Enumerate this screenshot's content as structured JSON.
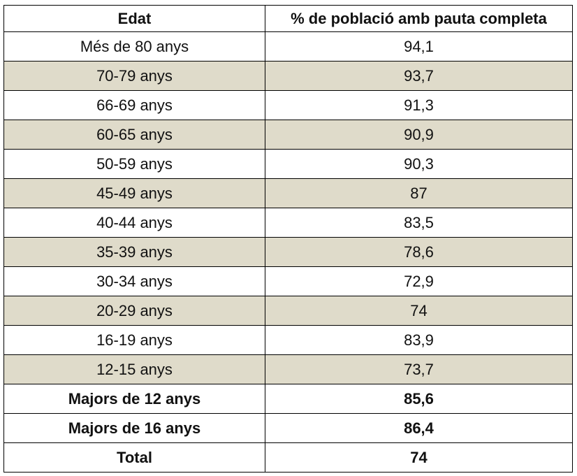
{
  "table": {
    "header": [
      "Edat",
      "% de població amb pauta completa"
    ],
    "rows": [
      [
        "Més de 80 anys",
        "94,1"
      ],
      [
        "70-79 anys",
        "93,7"
      ],
      [
        "66-69 anys",
        "91,3"
      ],
      [
        "60-65 anys",
        "90,9"
      ],
      [
        "50-59 anys",
        "90,3"
      ],
      [
        "45-49 anys",
        "87"
      ],
      [
        "40-44 anys",
        "83,5"
      ],
      [
        "35-39 anys",
        "78,6"
      ],
      [
        "30-34 anys",
        "72,9"
      ],
      [
        "20-29 anys",
        "74"
      ],
      [
        "16-19 anys",
        "83,9"
      ],
      [
        "12-15 anys",
        "73,7"
      ],
      [
        "Majors de 12 anys",
        "85,6"
      ],
      [
        "Majors de 16 anys",
        "86,4"
      ],
      [
        "Total",
        "74"
      ]
    ]
  }
}
